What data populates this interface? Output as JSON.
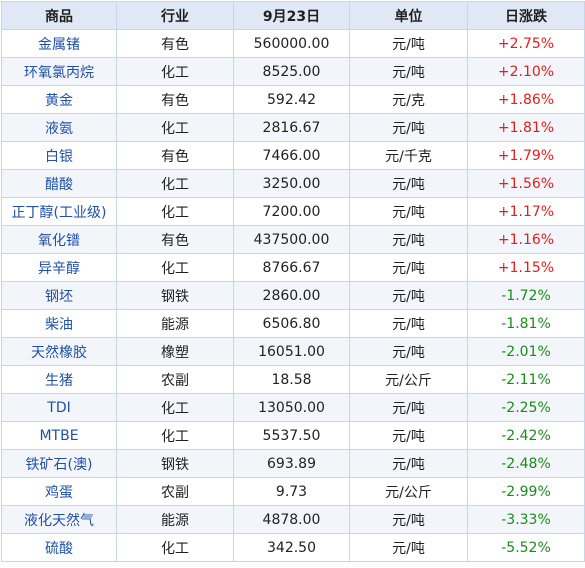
{
  "table": {
    "headers": [
      "商品",
      "行业",
      "9月23日",
      "单位",
      "日涨跌"
    ],
    "colors": {
      "up": "#e0201a",
      "down": "#1a8c1a",
      "link": "#2150a6",
      "header_bg": "#dfe8f4",
      "border": "#c9d6e6"
    },
    "rows": [
      {
        "name": "金属锗",
        "industry": "有色",
        "price": "560000.00",
        "unit": "元/吨",
        "change": "+2.75%",
        "dir": "up"
      },
      {
        "name": "环氧氯丙烷",
        "industry": "化工",
        "price": "8525.00",
        "unit": "元/吨",
        "change": "+2.10%",
        "dir": "up"
      },
      {
        "name": "黄金",
        "industry": "有色",
        "price": "592.42",
        "unit": "元/克",
        "change": "+1.86%",
        "dir": "up"
      },
      {
        "name": "液氨",
        "industry": "化工",
        "price": "2816.67",
        "unit": "元/吨",
        "change": "+1.81%",
        "dir": "up"
      },
      {
        "name": "白银",
        "industry": "有色",
        "price": "7466.00",
        "unit": "元/千克",
        "change": "+1.79%",
        "dir": "up"
      },
      {
        "name": "醋酸",
        "industry": "化工",
        "price": "3250.00",
        "unit": "元/吨",
        "change": "+1.56%",
        "dir": "up"
      },
      {
        "name": "正丁醇(工业级)",
        "industry": "化工",
        "price": "7200.00",
        "unit": "元/吨",
        "change": "+1.17%",
        "dir": "up"
      },
      {
        "name": "氧化镨",
        "industry": "有色",
        "price": "437500.00",
        "unit": "元/吨",
        "change": "+1.16%",
        "dir": "up"
      },
      {
        "name": "异辛醇",
        "industry": "化工",
        "price": "8766.67",
        "unit": "元/吨",
        "change": "+1.15%",
        "dir": "up"
      },
      {
        "name": "钢坯",
        "industry": "钢铁",
        "price": "2860.00",
        "unit": "元/吨",
        "change": "-1.72%",
        "dir": "down"
      },
      {
        "name": "柴油",
        "industry": "能源",
        "price": "6506.80",
        "unit": "元/吨",
        "change": "-1.81%",
        "dir": "down"
      },
      {
        "name": "天然橡胶",
        "industry": "橡塑",
        "price": "16051.00",
        "unit": "元/吨",
        "change": "-2.01%",
        "dir": "down"
      },
      {
        "name": "生猪",
        "industry": "农副",
        "price": "18.58",
        "unit": "元/公斤",
        "change": "-2.11%",
        "dir": "down"
      },
      {
        "name": "TDI",
        "industry": "化工",
        "price": "13050.00",
        "unit": "元/吨",
        "change": "-2.25%",
        "dir": "down"
      },
      {
        "name": "MTBE",
        "industry": "化工",
        "price": "5537.50",
        "unit": "元/吨",
        "change": "-2.42%",
        "dir": "down"
      },
      {
        "name": "铁矿石(澳)",
        "industry": "钢铁",
        "price": "693.89",
        "unit": "元/吨",
        "change": "-2.48%",
        "dir": "down"
      },
      {
        "name": "鸡蛋",
        "industry": "农副",
        "price": "9.73",
        "unit": "元/公斤",
        "change": "-2.99%",
        "dir": "down"
      },
      {
        "name": "液化天然气",
        "industry": "能源",
        "price": "4878.00",
        "unit": "元/吨",
        "change": "-3.33%",
        "dir": "down"
      },
      {
        "name": "硫酸",
        "industry": "化工",
        "price": "342.50",
        "unit": "元/吨",
        "change": "-5.52%",
        "dir": "down"
      }
    ]
  }
}
